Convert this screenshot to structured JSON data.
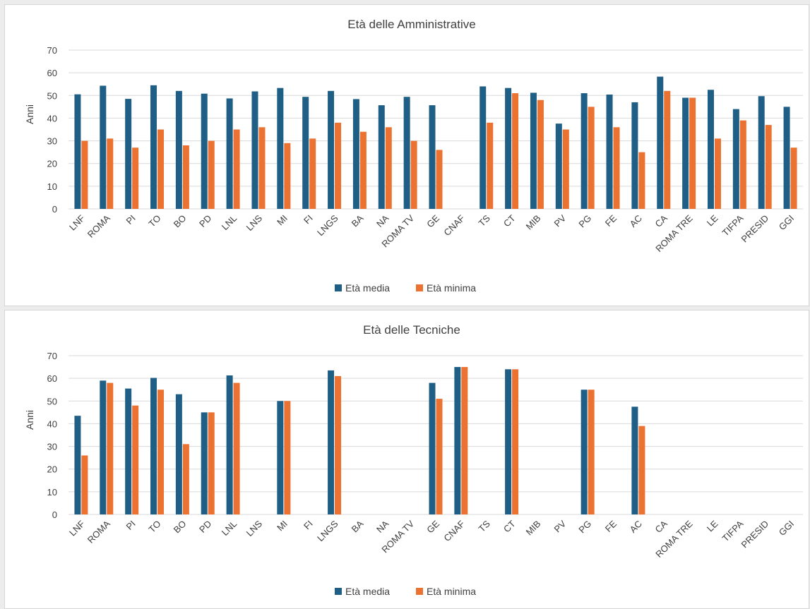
{
  "colors": {
    "media": "#1f5f86",
    "minima": "#ec7232",
    "grid": "#d9d9d9",
    "text": "#404040"
  },
  "chart_data": [
    {
      "type": "bar",
      "title": "Età delle Amministrative",
      "ylabel": "Anni",
      "ylim": [
        0,
        70
      ],
      "yticks": [
        0,
        10,
        20,
        30,
        40,
        50,
        60,
        70
      ],
      "grid": true,
      "legend": "bottom",
      "categories": [
        "LNF",
        "ROMA",
        "PI",
        "TO",
        "BO",
        "PD",
        "LNL",
        "LNS",
        "MI",
        "FI",
        "LNGS",
        "BA",
        "NA",
        "ROMA TV",
        "GE",
        "CNAF",
        "TS",
        "CT",
        "MIB",
        "PV",
        "PG",
        "FE",
        "AC",
        "CA",
        "ROMA TRE",
        "LE",
        "TIFPA",
        "PRESID",
        "GGI"
      ],
      "series": [
        {
          "name": "Età media",
          "values": [
            50.5,
            54.3,
            48.5,
            54.5,
            52,
            50.8,
            48.7,
            51.8,
            53.3,
            49.4,
            52,
            48.4,
            45.7,
            49.4,
            45.7,
            null,
            54,
            53.3,
            51.2,
            37.6,
            51,
            50.4,
            47,
            58.3,
            49,
            52.5,
            44,
            49.7,
            45
          ]
        },
        {
          "name": "Età minima",
          "values": [
            30,
            31,
            27,
            35,
            28,
            30,
            35,
            36,
            29,
            31,
            38,
            34,
            36,
            30,
            26,
            null,
            38,
            51,
            48,
            35,
            45,
            36,
            25,
            52,
            49,
            31,
            39,
            37,
            27
          ]
        }
      ]
    },
    {
      "type": "bar",
      "title": "Età delle Tecniche",
      "ylabel": "Anni",
      "ylim": [
        0,
        70
      ],
      "yticks": [
        0,
        10,
        20,
        30,
        40,
        50,
        60,
        70
      ],
      "grid": true,
      "legend": "bottom",
      "categories": [
        "LNF",
        "ROMA",
        "PI",
        "TO",
        "BO",
        "PD",
        "LNL",
        "LNS",
        "MI",
        "FI",
        "LNGS",
        "BA",
        "NA",
        "ROMA TV",
        "GE",
        "CNAF",
        "TS",
        "CT",
        "MIB",
        "PV",
        "PG",
        "FE",
        "AC",
        "CA",
        "ROMA TRE",
        "LE",
        "TIFPA",
        "PRESID",
        "GGI"
      ],
      "series": [
        {
          "name": "Età media",
          "values": [
            43.5,
            59,
            55.5,
            60.2,
            53,
            45,
            61.3,
            null,
            50,
            null,
            63.5,
            null,
            null,
            null,
            58,
            65,
            null,
            64,
            null,
            null,
            55,
            null,
            47.5,
            null,
            null,
            null,
            null,
            null,
            null
          ]
        },
        {
          "name": "Età minima",
          "values": [
            26,
            58,
            48,
            55,
            31,
            45,
            58,
            null,
            50,
            null,
            61,
            null,
            null,
            null,
            51,
            65,
            null,
            64,
            null,
            null,
            55,
            null,
            39,
            null,
            null,
            null,
            null,
            null,
            null
          ]
        }
      ]
    }
  ]
}
